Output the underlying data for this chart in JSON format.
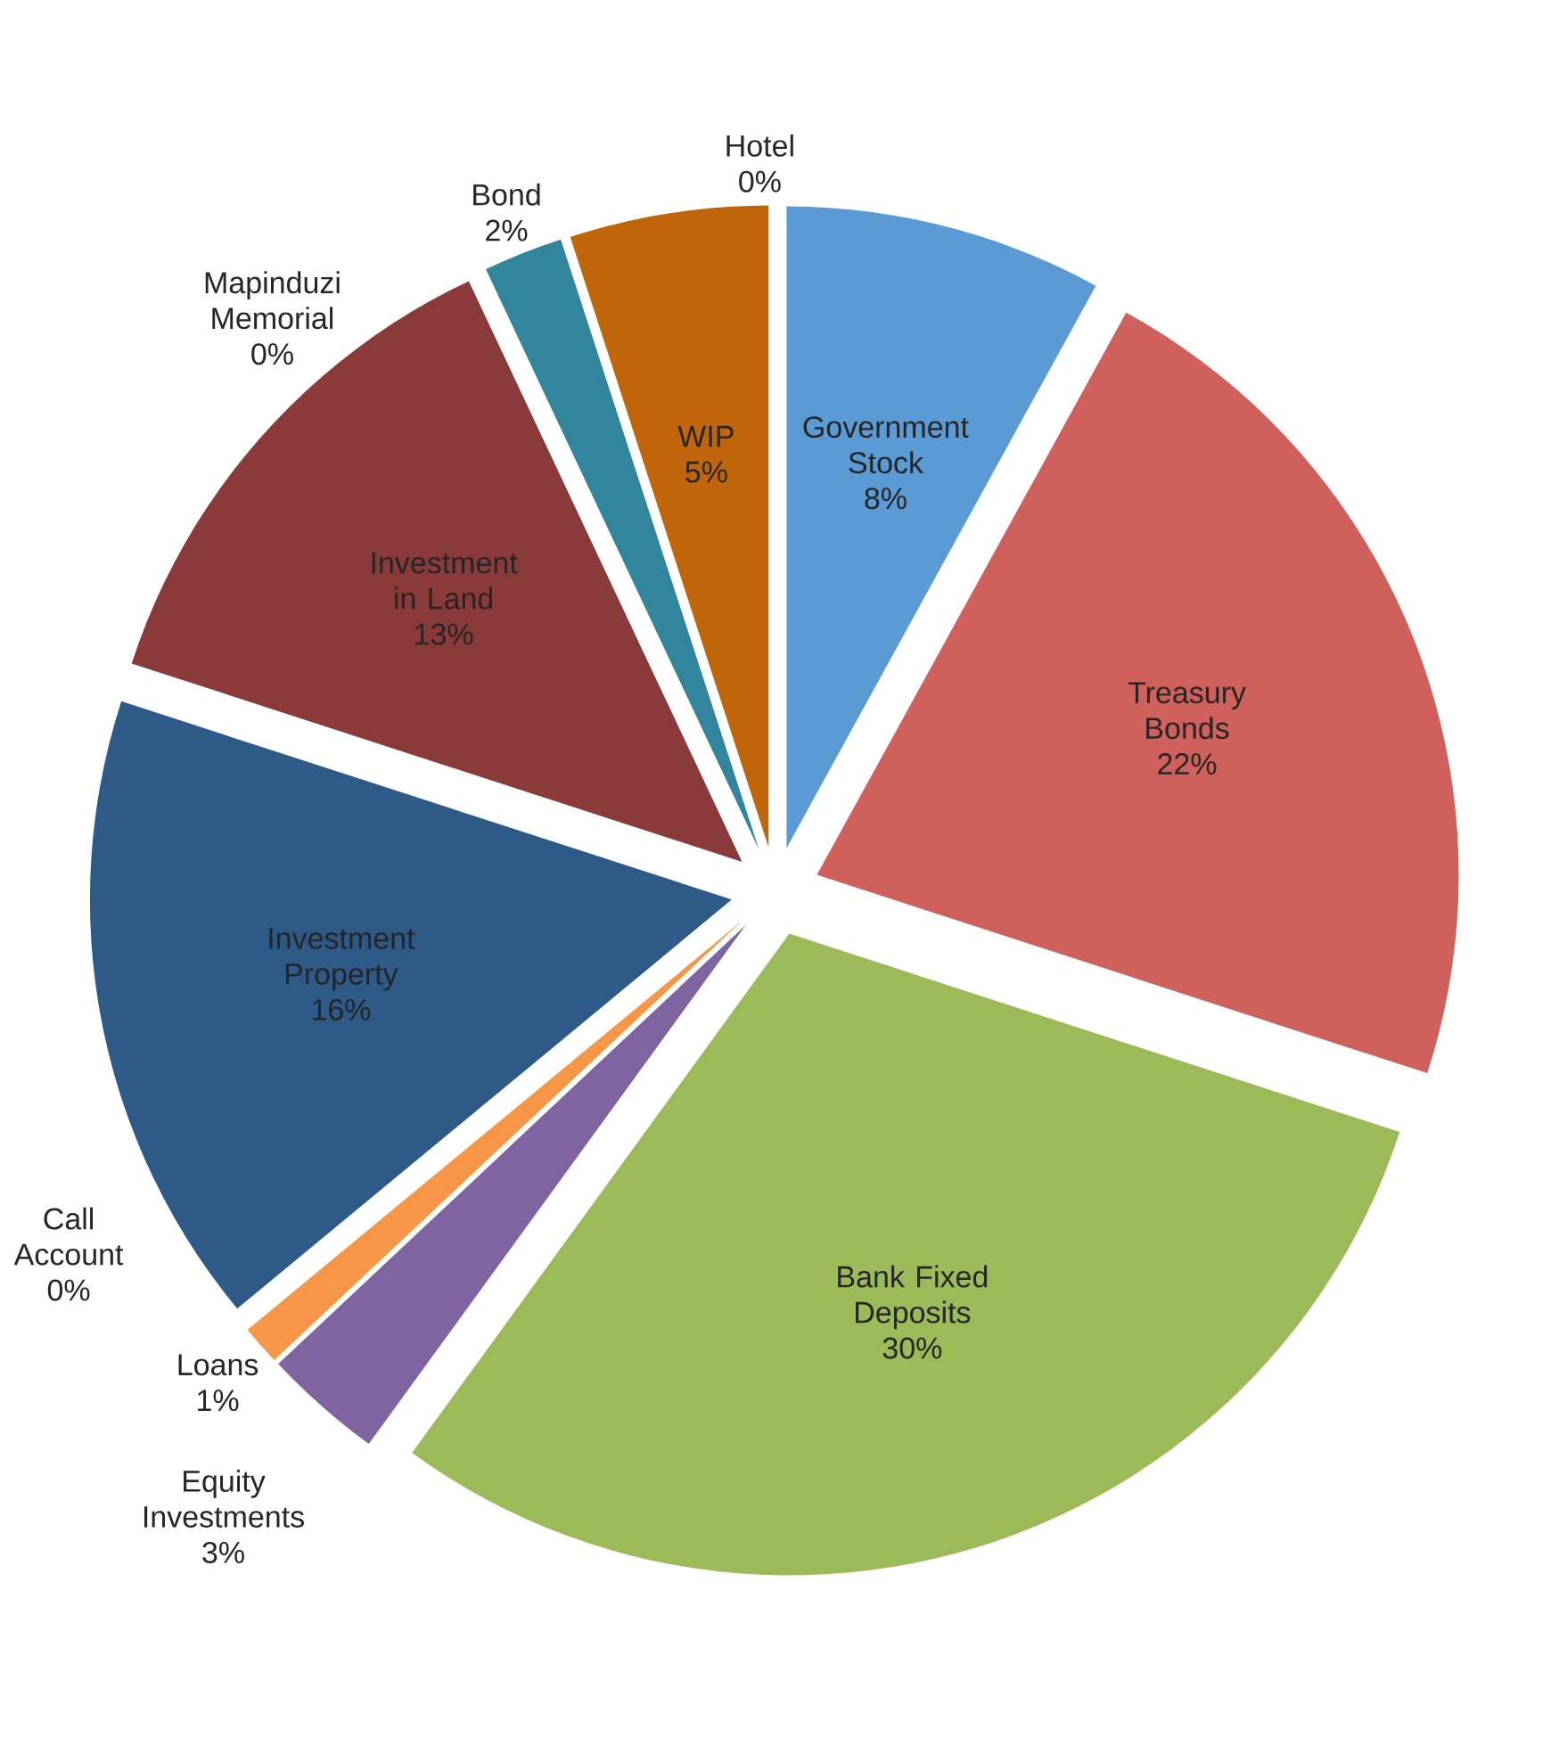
{
  "chart_data": {
    "type": "pie",
    "categories": [
      "Government Stock",
      "Treasury Bonds",
      "Bank Fixed Deposits",
      "Equity Investments",
      "Call Account",
      "Loans",
      "Investment Property",
      "Investment in Land",
      "Mapinduzi Memorial",
      "Hotel",
      "Bond",
      "WIP"
    ],
    "values": [
      8,
      22,
      30,
      3,
      0,
      1,
      16,
      13,
      0,
      0,
      2,
      5
    ],
    "value_labels": [
      "8%",
      "22%",
      "30%",
      "3%",
      "0%",
      "1%",
      "16%",
      "13%",
      "0%",
      "0%",
      "2%",
      "5%"
    ],
    "colors": [
      "#5b9bd5",
      "#d0605c",
      "#9bbb59",
      "#8064a2",
      "#4bacc6",
      "#f79646",
      "#2e5a87",
      "#8b3a3a",
      "#7f7f7f",
      "#a5a5a5",
      "#31859c",
      "#c0650a"
    ]
  }
}
